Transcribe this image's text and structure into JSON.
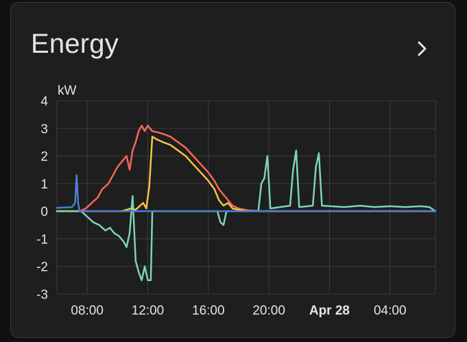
{
  "card": {
    "title": "Energy",
    "more_icon": "chevron-right-icon"
  },
  "chart_data": {
    "type": "line",
    "ylabel": "kW",
    "ylim": [
      -3,
      4
    ],
    "yticks": [
      "4",
      "3",
      "2",
      "1",
      "0",
      "-1",
      "-2",
      "-3"
    ],
    "xticks": [
      "08:00",
      "12:00",
      "16:00",
      "20:00",
      "Apr 28",
      "04:00"
    ],
    "xlim_hours": [
      6.0,
      31.0
    ],
    "grid": true,
    "series": [
      {
        "color": "#f4685c",
        "points": [
          [
            6.0,
            0
          ],
          [
            7.5,
            0
          ],
          [
            7.9,
            0.1
          ],
          [
            8.3,
            0.3
          ],
          [
            8.7,
            0.5
          ],
          [
            9.0,
            0.8
          ],
          [
            9.4,
            1.0
          ],
          [
            9.7,
            1.3
          ],
          [
            10.0,
            1.6
          ],
          [
            10.3,
            1.8
          ],
          [
            10.6,
            2.0
          ],
          [
            10.8,
            1.5
          ],
          [
            11.0,
            2.2
          ],
          [
            11.2,
            2.5
          ],
          [
            11.4,
            2.9
          ],
          [
            11.6,
            3.1
          ],
          [
            11.8,
            2.9
          ],
          [
            12.0,
            3.1
          ],
          [
            12.3,
            2.9
          ],
          [
            12.7,
            2.85
          ],
          [
            13.0,
            2.8
          ],
          [
            13.5,
            2.7
          ],
          [
            14.0,
            2.5
          ],
          [
            14.5,
            2.3
          ],
          [
            15.0,
            2.0
          ],
          [
            15.5,
            1.7
          ],
          [
            16.0,
            1.4
          ],
          [
            16.4,
            1.1
          ],
          [
            16.7,
            0.8
          ],
          [
            17.0,
            0.6
          ],
          [
            17.3,
            0.4
          ],
          [
            17.6,
            0.2
          ],
          [
            18.0,
            0.1
          ],
          [
            18.6,
            0.03
          ],
          [
            19.5,
            0
          ],
          [
            31.0,
            0
          ]
        ]
      },
      {
        "color": "#f5c542",
        "points": [
          [
            6.0,
            0
          ],
          [
            10.3,
            0
          ],
          [
            10.6,
            0.05
          ],
          [
            10.9,
            0.1
          ],
          [
            11.2,
            0.05
          ],
          [
            11.5,
            0.2
          ],
          [
            11.7,
            0.3
          ],
          [
            11.9,
            0.1
          ],
          [
            12.1,
            0.9
          ],
          [
            12.3,
            2.7
          ],
          [
            12.6,
            2.6
          ],
          [
            13.0,
            2.5
          ],
          [
            13.5,
            2.4
          ],
          [
            14.0,
            2.2
          ],
          [
            14.5,
            2.0
          ],
          [
            15.0,
            1.7
          ],
          [
            15.5,
            1.4
          ],
          [
            16.0,
            1.1
          ],
          [
            16.4,
            0.8
          ],
          [
            16.7,
            0.4
          ],
          [
            17.0,
            0.2
          ],
          [
            17.3,
            0.3
          ],
          [
            17.6,
            0.1
          ],
          [
            18.0,
            0.05
          ],
          [
            18.5,
            0
          ],
          [
            31.0,
            0
          ]
        ]
      },
      {
        "color": "#7dd3b8",
        "points": [
          [
            6.0,
            0
          ],
          [
            7.6,
            0
          ],
          [
            8.0,
            -0.2
          ],
          [
            8.4,
            -0.4
          ],
          [
            8.8,
            -0.5
          ],
          [
            9.2,
            -0.7
          ],
          [
            9.5,
            -0.6
          ],
          [
            9.8,
            -0.8
          ],
          [
            10.1,
            -0.9
          ],
          [
            10.4,
            -1.1
          ],
          [
            10.6,
            -1.3
          ],
          [
            10.8,
            -0.8
          ],
          [
            11.0,
            0.55
          ],
          [
            11.2,
            -1.8
          ],
          [
            11.4,
            -2.2
          ],
          [
            11.6,
            -2.5
          ],
          [
            11.8,
            -2.0
          ],
          [
            12.0,
            -2.5
          ],
          [
            12.2,
            -2.5
          ],
          [
            12.3,
            0
          ],
          [
            16.6,
            0
          ],
          [
            16.8,
            -0.4
          ],
          [
            17.0,
            -0.5
          ],
          [
            17.2,
            0
          ],
          [
            19.3,
            0
          ],
          [
            19.5,
            1.0
          ],
          [
            19.7,
            1.2
          ],
          [
            19.9,
            2.0
          ],
          [
            20.1,
            0.1
          ],
          [
            21.4,
            0.2
          ],
          [
            21.6,
            1.5
          ],
          [
            21.8,
            2.2
          ],
          [
            22.0,
            0.15
          ],
          [
            22.9,
            0.2
          ],
          [
            23.1,
            1.6
          ],
          [
            23.3,
            2.1
          ],
          [
            23.5,
            0.2
          ],
          [
            25.0,
            0.15
          ],
          [
            26.0,
            0.2
          ],
          [
            27.0,
            0.15
          ],
          [
            28.0,
            0.18
          ],
          [
            29.0,
            0.15
          ],
          [
            30.0,
            0.18
          ],
          [
            30.6,
            0.15
          ],
          [
            31.0,
            0
          ]
        ]
      },
      {
        "color": "#4a7fd4",
        "points": [
          [
            6.0,
            0.12
          ],
          [
            7.0,
            0.15
          ],
          [
            7.2,
            0.3
          ],
          [
            7.3,
            1.3
          ],
          [
            7.4,
            0.3
          ],
          [
            7.5,
            0
          ],
          [
            31.0,
            0
          ]
        ]
      }
    ]
  }
}
